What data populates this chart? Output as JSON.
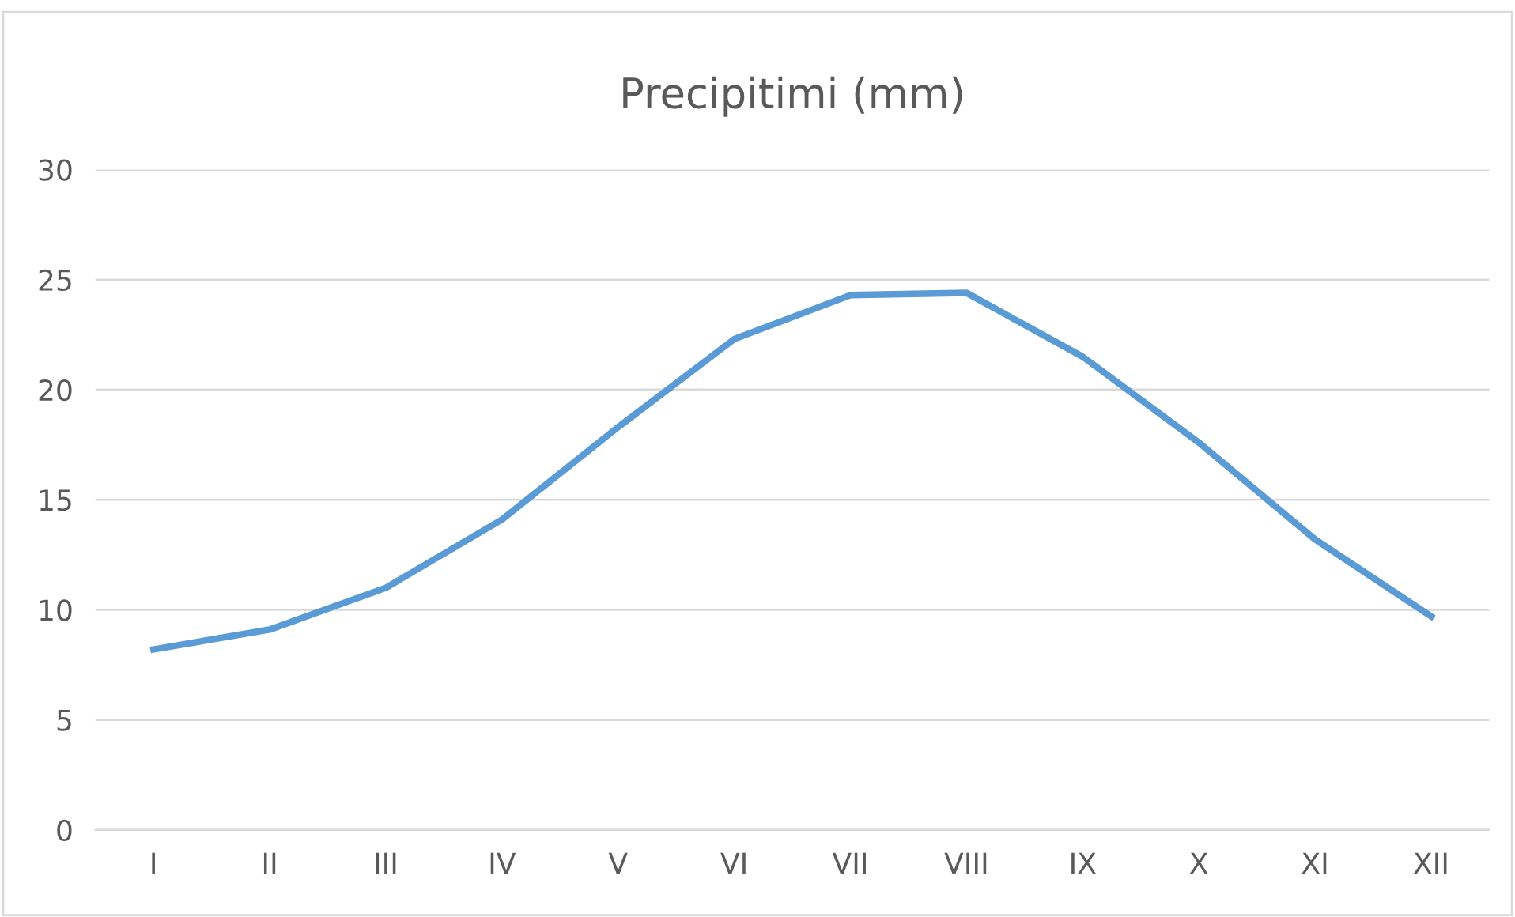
{
  "chart_data": {
    "type": "line",
    "title": "Precipitimi (mm)",
    "categories": [
      "I",
      "II",
      "III",
      "IV",
      "V",
      "VI",
      "VII",
      "VIII",
      "IX",
      "X",
      "XI",
      "XII"
    ],
    "series": [
      {
        "color": "#5b9bd5",
        "values": [
          8.2,
          9.1,
          11.0,
          14.1,
          18.3,
          22.3,
          24.3,
          24.4,
          21.5,
          17.6,
          13.2,
          9.7
        ]
      }
    ],
    "ylim": [
      0,
      30
    ],
    "yticks": [
      0,
      5,
      10,
      15,
      20,
      25,
      30
    ],
    "grid": "y",
    "legend": false,
    "marker": "none",
    "line_style": "solid"
  }
}
